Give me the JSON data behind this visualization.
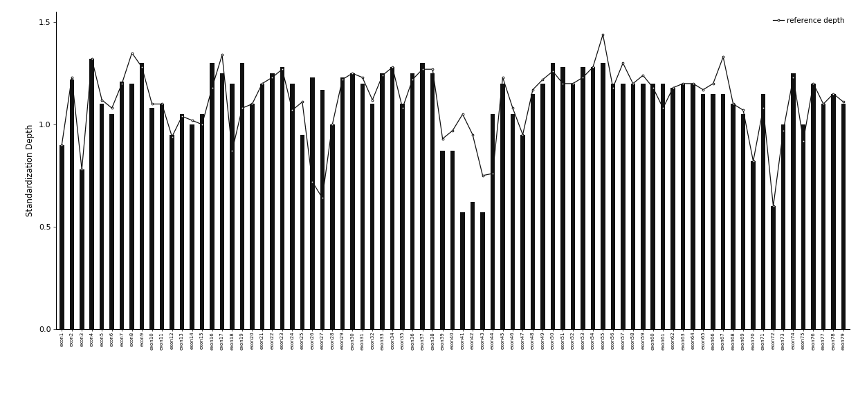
{
  "categories": [
    "exon1",
    "exon2",
    "exon3",
    "exon4",
    "exon5",
    "exon6",
    "exon7",
    "exon8",
    "exon9",
    "exon10",
    "exon11",
    "exon12",
    "exon13",
    "exon14",
    "exon15",
    "exon16",
    "exon17",
    "exon18",
    "exon19",
    "exon20",
    "exon21",
    "exon22",
    "exon23",
    "exon24",
    "exon25",
    "exon26",
    "exon27",
    "exon28",
    "exon29",
    "exon30",
    "exon31",
    "exon32",
    "exon33",
    "exon34",
    "exon35",
    "exon36",
    "exon37",
    "exon38",
    "exon39",
    "exon40",
    "exon41",
    "exon42",
    "exon43",
    "exon44",
    "exon45",
    "exon46",
    "exon47",
    "exon48",
    "exon49",
    "exon50",
    "exon51",
    "exon52",
    "exon53",
    "exon54",
    "exon55",
    "exon56",
    "exon57",
    "exon58",
    "exon59",
    "exon60",
    "exon61",
    "exon62",
    "exon63",
    "exon64",
    "exon65",
    "exon66",
    "exon67",
    "exon68",
    "exon69",
    "exon70",
    "exon71",
    "exon72",
    "exon73",
    "exon74",
    "exon75",
    "exon76",
    "exon77",
    "exon78",
    "exon79"
  ],
  "bar_values": [
    0.9,
    1.22,
    0.78,
    1.32,
    1.1,
    1.05,
    1.21,
    1.2,
    1.3,
    1.08,
    1.1,
    0.95,
    1.05,
    1.0,
    1.05,
    1.3,
    1.25,
    1.2,
    1.3,
    1.1,
    1.2,
    1.25,
    1.28,
    1.2,
    0.95,
    1.23,
    1.17,
    1.0,
    1.23,
    1.25,
    1.2,
    1.1,
    1.25,
    1.28,
    1.1,
    1.25,
    1.3,
    1.25,
    0.87,
    0.87,
    0.57,
    0.62,
    0.57,
    1.05,
    1.2,
    1.05,
    0.95,
    1.15,
    1.2,
    1.3,
    1.28,
    1.2,
    1.28,
    1.28,
    1.3,
    1.2,
    1.2,
    1.2,
    1.2,
    1.2,
    1.2,
    1.18,
    1.2,
    1.2,
    1.15,
    1.15,
    1.15,
    1.1,
    1.05,
    0.82,
    1.15,
    0.6,
    1.0,
    1.25,
    1.0,
    1.2,
    1.1,
    1.15,
    1.1
  ],
  "line_values": [
    0.9,
    1.23,
    0.78,
    1.32,
    1.12,
    1.08,
    1.2,
    1.35,
    1.28,
    1.1,
    1.1,
    0.94,
    1.04,
    1.02,
    1.0,
    1.18,
    1.34,
    0.87,
    1.08,
    1.1,
    1.2,
    1.23,
    1.27,
    1.07,
    1.11,
    0.72,
    0.64,
    1.0,
    1.22,
    1.25,
    1.23,
    1.12,
    1.24,
    1.28,
    1.08,
    1.22,
    1.27,
    1.27,
    0.93,
    0.97,
    1.05,
    0.95,
    0.75,
    0.76,
    1.23,
    1.08,
    0.95,
    1.17,
    1.22,
    1.26,
    1.2,
    1.2,
    1.23,
    1.28,
    1.44,
    1.18,
    1.3,
    1.2,
    1.24,
    1.18,
    1.08,
    1.18,
    1.2,
    1.2,
    1.17,
    1.2,
    1.33,
    1.1,
    1.07,
    0.82,
    1.08,
    0.6,
    0.97,
    1.23,
    0.92,
    1.2,
    1.1,
    1.15,
    1.11
  ],
  "bar_color": "#111111",
  "line_color": "#111111",
  "background_color": "#ffffff",
  "ylabel": "Standardization Depth",
  "ylim": [
    0.0,
    1.55
  ],
  "yticks": [
    0.0,
    0.5,
    1.0,
    1.5
  ],
  "ytick_labels": [
    "0.0",
    "0.5",
    "1.0",
    "1.5"
  ],
  "legend_label": "reference depth",
  "bar_width": 0.45
}
